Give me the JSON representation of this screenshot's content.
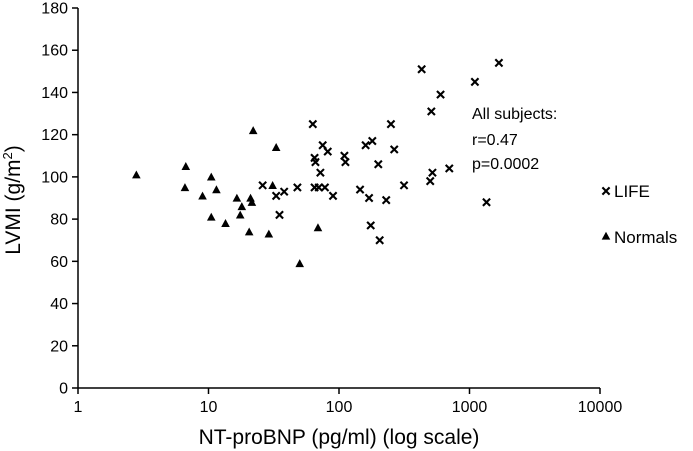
{
  "chart_data": {
    "type": "scatter",
    "xlabel": "NT-proBNP (pg/ml) (log scale)",
    "ylabel_main": "LVMI (g/m",
    "ylabel_sup": "2",
    "ylabel_tail": ")",
    "x_scale": "log",
    "xlim": [
      1,
      10000
    ],
    "ylim": [
      0,
      180
    ],
    "x_ticks": [
      1,
      10,
      100,
      1000,
      10000
    ],
    "x_tick_labels": [
      "1",
      "10",
      "100",
      "1000",
      "10000"
    ],
    "y_ticks": [
      0,
      20,
      40,
      60,
      80,
      100,
      120,
      140,
      160,
      180
    ],
    "y_tick_labels": [
      "0",
      "20",
      "40",
      "60",
      "80",
      "100",
      "120",
      "140",
      "160",
      "180"
    ],
    "grid": false,
    "legend_placement": "right",
    "annotation": [
      "All subjects:",
      "r=0.47",
      "p=0.0002"
    ],
    "series": [
      {
        "name": "LIFE",
        "marker": "x",
        "color": "#000000",
        "points": [
          [
            26,
            96
          ],
          [
            33,
            91
          ],
          [
            35,
            82
          ],
          [
            38,
            93
          ],
          [
            48,
            95
          ],
          [
            63,
            125
          ],
          [
            65,
            109
          ],
          [
            65,
            95
          ],
          [
            66,
            107
          ],
          [
            70,
            95
          ],
          [
            72,
            102
          ],
          [
            75,
            115
          ],
          [
            78,
            95
          ],
          [
            82,
            112
          ],
          [
            90,
            91
          ],
          [
            110,
            110
          ],
          [
            112,
            107
          ],
          [
            145,
            94
          ],
          [
            160,
            115
          ],
          [
            170,
            90
          ],
          [
            175,
            77
          ],
          [
            180,
            117
          ],
          [
            200,
            106
          ],
          [
            205,
            70
          ],
          [
            230,
            89
          ],
          [
            250,
            125
          ],
          [
            265,
            113
          ],
          [
            315,
            96
          ],
          [
            430,
            151
          ],
          [
            500,
            98
          ],
          [
            510,
            131
          ],
          [
            520,
            102
          ],
          [
            600,
            139
          ],
          [
            700,
            104
          ],
          [
            1100,
            145
          ],
          [
            1350,
            88
          ],
          [
            1680,
            154
          ]
        ]
      },
      {
        "name": "Normals",
        "marker": "triangle",
        "color": "#000000",
        "points": [
          [
            2.8,
            101
          ],
          [
            6.6,
            95
          ],
          [
            6.7,
            105
          ],
          [
            9,
            91
          ],
          [
            10.5,
            100
          ],
          [
            10.5,
            81
          ],
          [
            11.5,
            94
          ],
          [
            13.5,
            78
          ],
          [
            16.5,
            90
          ],
          [
            17.5,
            82
          ],
          [
            18,
            86
          ],
          [
            20.5,
            74
          ],
          [
            21,
            90
          ],
          [
            21.5,
            88
          ],
          [
            22,
            122
          ],
          [
            29,
            73
          ],
          [
            31,
            96
          ],
          [
            33,
            114
          ],
          [
            50,
            59
          ],
          [
            69,
            76
          ]
        ]
      }
    ]
  }
}
